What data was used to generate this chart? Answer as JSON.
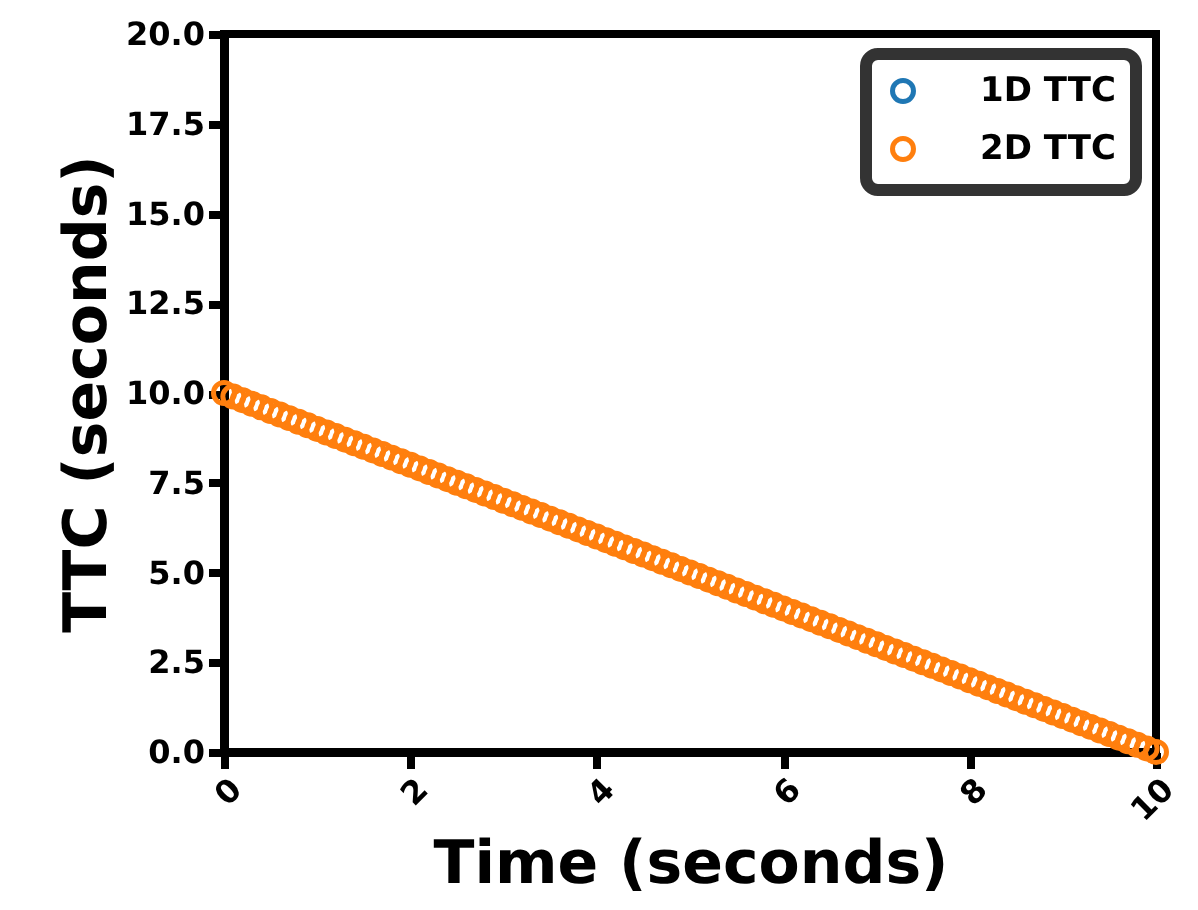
{
  "chart_data": {
    "type": "scatter",
    "xlabel": "Time (seconds)",
    "ylabel": "TTC (seconds)",
    "x": [
      0,
      0.1,
      0.2,
      0.3,
      0.4,
      0.5,
      0.6,
      0.7,
      0.8,
      0.9,
      1,
      1.1,
      1.2,
      1.3,
      1.4,
      1.5,
      1.6,
      1.7,
      1.8,
      1.9,
      2,
      2.1,
      2.2,
      2.3,
      2.4,
      2.5,
      2.6,
      2.7,
      2.8,
      2.9,
      3,
      3.1,
      3.2,
      3.3,
      3.4,
      3.5,
      3.6,
      3.7,
      3.8,
      3.9,
      4,
      4.1,
      4.2,
      4.3,
      4.4,
      4.5,
      4.6,
      4.7,
      4.8,
      4.9,
      5,
      5.1,
      5.2,
      5.3,
      5.4,
      5.5,
      5.6,
      5.7,
      5.8,
      5.9,
      6,
      6.1,
      6.2,
      6.3,
      6.4,
      6.5,
      6.6,
      6.7,
      6.8,
      6.9,
      7,
      7.1,
      7.2,
      7.3,
      7.4,
      7.5,
      7.6,
      7.7,
      7.8,
      7.9,
      8,
      8.1,
      8.2,
      8.3,
      8.4,
      8.5,
      8.6,
      8.7,
      8.8,
      8.9,
      9,
      9.1,
      9.2,
      9.3,
      9.4,
      9.5,
      9.6,
      9.7,
      9.8,
      9.9,
      10
    ],
    "series": [
      {
        "name": "1D TTC",
        "color": "#1f77b4",
        "values": [
          null,
          null,
          null,
          null,
          null,
          null,
          null,
          null,
          null,
          null,
          null,
          null,
          null,
          null,
          null,
          null,
          null,
          null,
          null,
          null,
          null,
          null,
          null,
          null,
          null,
          null,
          null,
          null,
          null,
          null,
          null,
          null,
          null,
          null,
          null,
          null,
          null,
          null,
          null,
          null,
          null,
          null,
          null,
          null,
          null,
          null,
          null,
          null,
          null,
          null,
          null,
          null,
          null,
          null,
          null,
          null,
          null,
          null,
          null,
          null,
          null,
          null,
          null,
          null,
          null,
          null,
          null,
          null,
          null,
          null,
          null,
          null,
          null,
          null,
          null,
          null,
          null,
          null,
          null,
          null,
          null,
          null,
          null,
          null,
          null,
          null,
          null,
          null,
          null,
          null,
          null,
          null,
          null,
          null,
          null,
          null,
          null,
          null,
          null,
          null,
          null
        ]
      },
      {
        "name": "2D TTC",
        "color": "#ff7f0e",
        "values": [
          10,
          9.9,
          9.8,
          9.7,
          9.6,
          9.5,
          9.4,
          9.3,
          9.2,
          9.1,
          9,
          8.9,
          8.8,
          8.7,
          8.6,
          8.5,
          8.4,
          8.3,
          8.2,
          8.1,
          8,
          7.9,
          7.8,
          7.7,
          7.6,
          7.5,
          7.4,
          7.3,
          7.2,
          7.1,
          7,
          6.9,
          6.8,
          6.7,
          6.6,
          6.5,
          6.4,
          6.3,
          6.2,
          6.1,
          6,
          5.9,
          5.8,
          5.7,
          5.6,
          5.5,
          5.4,
          5.3,
          5.2,
          5.1,
          5,
          4.9,
          4.8,
          4.7,
          4.6,
          4.5,
          4.4,
          4.3,
          4.2,
          4.1,
          4,
          3.9,
          3.8,
          3.7,
          3.6,
          3.5,
          3.4,
          3.3,
          3.2,
          3.1,
          3,
          2.9,
          2.8,
          2.7,
          2.6,
          2.5,
          2.4,
          2.3,
          2.2,
          2.1,
          2,
          1.9,
          1.8,
          1.7,
          1.6,
          1.5,
          1.4,
          1.3,
          1.2,
          1.1,
          1,
          0.9,
          0.8,
          0.7,
          0.6,
          0.5,
          0.4,
          0.3,
          0.2,
          0.1,
          0
        ]
      }
    ],
    "xlim": [
      0,
      10
    ],
    "xticks": [
      0,
      2,
      4,
      6,
      8,
      10
    ],
    "ylim": [
      0,
      20
    ],
    "yticks": [
      {
        "value": 0,
        "label": "0.0"
      },
      {
        "value": 2.5,
        "label": "2.5"
      },
      {
        "value": 5,
        "label": "5.0"
      },
      {
        "value": 7.5,
        "label": "7.5"
      },
      {
        "value": 10,
        "label": "10.0"
      },
      {
        "value": 12.5,
        "label": "12.5"
      },
      {
        "value": 15,
        "label": "15.0"
      },
      {
        "value": 17.5,
        "label": "17.5"
      },
      {
        "value": 20,
        "label": "20.0"
      }
    ],
    "legend": "top right",
    "marker": "circle"
  }
}
